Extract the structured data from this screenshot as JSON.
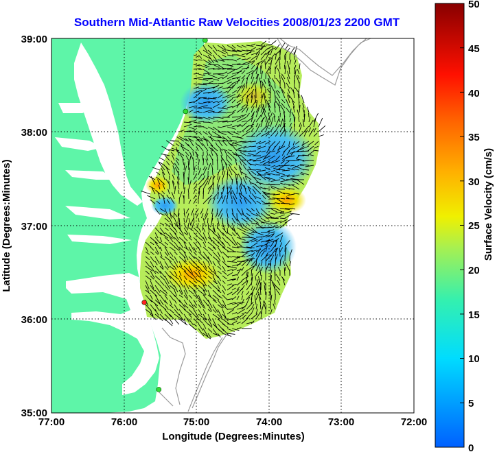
{
  "title": "Southern Mid-Atlantic Raw Velocities 2008/01/23 2200 GMT",
  "map": {
    "xlabel": "Longitude (Degrees:Minutes)",
    "ylabel": "Latitude (Degrees:Minutes)",
    "x_ticks": [
      "77:00",
      "76:00",
      "75:00",
      "74:00",
      "73:00",
      "72:00"
    ],
    "y_ticks": [
      "39:00",
      "38:00",
      "37:00",
      "36:00",
      "35:00"
    ],
    "lon_range": [
      -77,
      -72
    ],
    "lat_range": [
      35,
      39
    ],
    "grid": true,
    "land_color": "#5ef5a8",
    "water_color": "#ffffff"
  },
  "colorbar": {
    "label": "Surface Velocity (cm/s)",
    "ticks": [
      "50",
      "45",
      "40",
      "35",
      "30",
      "25",
      "20",
      "15",
      "10",
      "5",
      "0"
    ],
    "range": [
      0,
      50
    ]
  },
  "stations": [
    {
      "lon": -74.88,
      "lat": 38.98,
      "color": "#33dd33"
    },
    {
      "lon": -75.15,
      "lat": 38.22,
      "color": "#33dd33"
    },
    {
      "lon": -75.72,
      "lat": 36.18,
      "color": "#ff2222"
    },
    {
      "lon": -75.52,
      "lat": 35.25,
      "color": "#33dd33"
    }
  ]
}
